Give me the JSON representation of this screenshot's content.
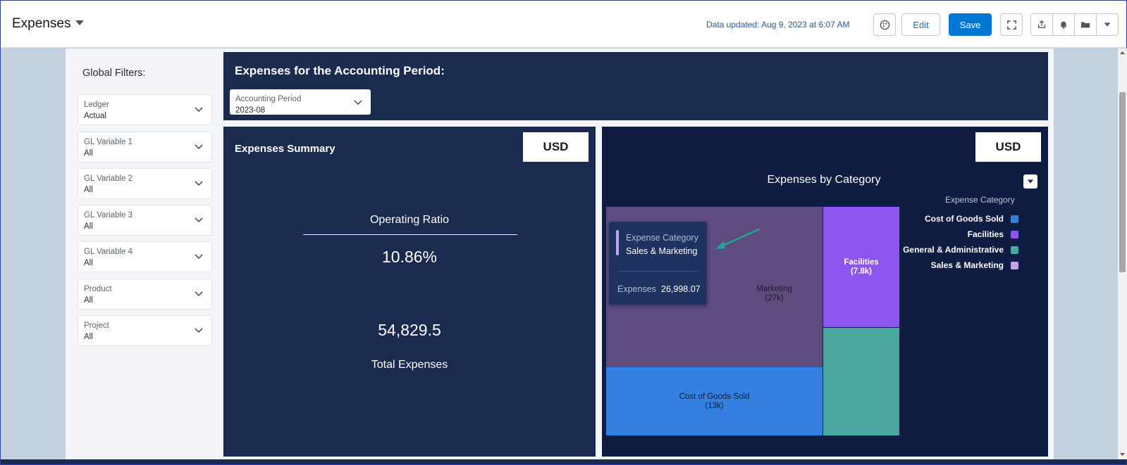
{
  "header": {
    "title": "Expenses",
    "data_updated": "Data updated: Aug 9, 2023 at 6:07 AM",
    "edit_label": "Edit",
    "save_label": "Save"
  },
  "filters": {
    "title": "Global Filters:",
    "items": [
      {
        "label": "Ledger",
        "value": "Actual"
      },
      {
        "label": "GL Variable 1",
        "value": "All"
      },
      {
        "label": "GL Variable 2",
        "value": "All"
      },
      {
        "label": "GL Variable 3",
        "value": "All"
      },
      {
        "label": "GL Variable 4",
        "value": "All"
      },
      {
        "label": "Product",
        "value": "All"
      },
      {
        "label": "Project",
        "value": "All"
      }
    ]
  },
  "period_panel": {
    "title": "Expenses for the Accounting Period:",
    "dropdown_label": "Accounting Period",
    "dropdown_value": "2023-08"
  },
  "summary": {
    "title": "Expenses Summary",
    "currency": "USD",
    "operating_ratio_label": "Operating Ratio",
    "operating_ratio_value": "10.86%",
    "total_value": "54,829.5",
    "total_label": "Total Expenses"
  },
  "category_chart": {
    "currency": "USD",
    "title": "Expenses by Category",
    "legend_title": "Expense Category",
    "tooltip": {
      "category_label": "Expense Category",
      "category_value": "Sales & Marketing",
      "metric_label": "Expenses",
      "metric_value": "26,998.07"
    }
  },
  "chart_data": {
    "type": "treemap",
    "title": "Expenses by Category",
    "legend": "Expense Category",
    "items": [
      {
        "name": "Sales & Marketing",
        "label": "(27k)",
        "partial_label": "Marketing",
        "value": 26998.07,
        "color": "#5e4c7f"
      },
      {
        "name": "Cost of Goods Sold",
        "label": "(13k)",
        "value": 13000,
        "color": "#3380e0"
      },
      {
        "name": "Facilities",
        "label": "(7.8k)",
        "value": 7800,
        "color": "#8b55ee"
      },
      {
        "name": "General & Administrative",
        "value": 7000,
        "color": "#4aa8a0"
      }
    ],
    "legend_entries": [
      {
        "name": "Cost of Goods Sold",
        "color": "#3380e0"
      },
      {
        "name": "Facilities",
        "color": "#8b55ee"
      },
      {
        "name": "General & Administrative",
        "color": "#4aa8a0"
      },
      {
        "name": "Sales & Marketing",
        "color": "#c4a2f2"
      }
    ]
  }
}
